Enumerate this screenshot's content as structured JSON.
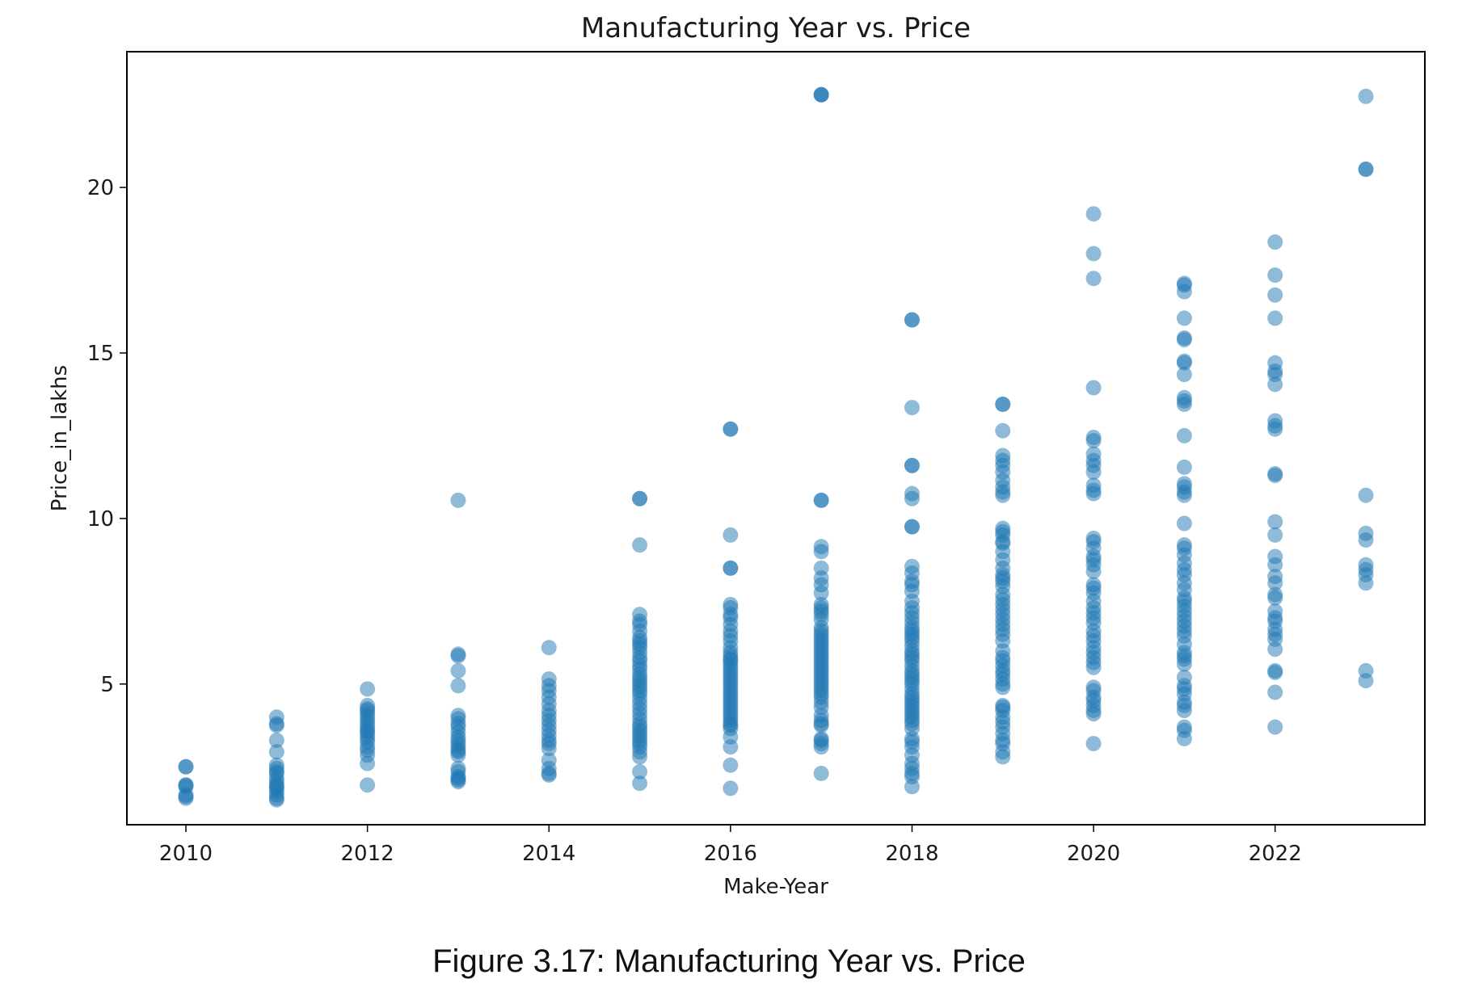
{
  "caption": "Figure 3.17: Manufacturing Year vs. Price",
  "chart_data": {
    "type": "scatter",
    "title": "Manufacturing Year vs. Price",
    "xlabel": "Make-Year",
    "ylabel": "Price_in_lakhs",
    "xlim": [
      2009.35,
      2023.65
    ],
    "ylim": [
      0.75,
      24.1
    ],
    "xticks": [
      2010,
      2012,
      2014,
      2016,
      2018,
      2020,
      2022
    ],
    "yticks": [
      5,
      10,
      15,
      20
    ],
    "grid": false,
    "legend": "none",
    "marker_color": "#1f77b4",
    "marker_alpha": 0.5,
    "points": [
      {
        "x": 2010,
        "y": [
          2.5,
          2.5,
          1.95,
          1.95,
          1.9,
          1.65,
          1.6,
          1.55
        ]
      },
      {
        "x": 2011,
        "y": [
          4.0,
          3.8,
          3.75,
          3.3,
          2.95,
          2.55,
          2.45,
          2.35,
          2.3,
          2.15,
          2.05,
          1.95,
          1.9,
          1.85,
          1.75,
          1.65,
          1.55,
          1.5
        ]
      },
      {
        "x": 2012,
        "y": [
          4.85,
          4.35,
          4.25,
          4.2,
          4.1,
          4.0,
          3.9,
          3.8,
          3.7,
          3.6,
          3.55,
          3.45,
          3.35,
          3.25,
          3.1,
          3.0,
          2.85,
          2.6,
          1.95
        ]
      },
      {
        "x": 2013,
        "y": [
          10.55,
          5.9,
          5.85,
          5.4,
          4.95,
          4.05,
          3.95,
          3.8,
          3.7,
          3.55,
          3.4,
          3.3,
          3.2,
          3.1,
          3.0,
          2.95,
          2.85,
          2.45,
          2.35,
          2.2,
          2.15,
          2.1,
          2.05
        ]
      },
      {
        "x": 2014,
        "y": [
          6.1,
          5.15,
          4.95,
          4.8,
          4.6,
          4.4,
          4.2,
          4.05,
          3.9,
          3.75,
          3.6,
          3.45,
          3.3,
          3.2,
          3.05,
          2.7,
          2.45,
          2.3,
          2.25
        ]
      },
      {
        "x": 2015,
        "y": [
          10.6,
          10.6,
          9.2,
          7.1,
          6.9,
          6.8,
          6.6,
          6.4,
          6.3,
          6.2,
          6.1,
          5.95,
          5.8,
          5.7,
          5.55,
          5.45,
          5.3,
          5.2,
          5.1,
          5.0,
          4.9,
          4.8,
          4.7,
          4.55,
          4.4,
          4.25,
          4.1,
          3.95,
          3.8,
          3.7,
          3.6,
          3.5,
          3.4,
          3.3,
          3.2,
          3.1,
          2.95,
          2.8,
          2.35,
          2.0
        ]
      },
      {
        "x": 2016,
        "y": [
          12.7,
          12.7,
          9.5,
          8.5,
          8.5,
          7.4,
          7.3,
          7.1,
          7.0,
          6.8,
          6.6,
          6.45,
          6.3,
          6.1,
          5.95,
          5.85,
          5.75,
          5.7,
          5.6,
          5.5,
          5.4,
          5.3,
          5.2,
          5.1,
          5.0,
          4.9,
          4.8,
          4.7,
          4.6,
          4.5,
          4.4,
          4.3,
          4.2,
          4.1,
          4.0,
          3.9,
          3.8,
          3.75,
          3.65,
          3.4,
          3.1,
          2.55,
          1.85
        ]
      },
      {
        "x": 2017,
        "y": [
          22.8,
          22.8,
          22.8,
          10.55,
          10.55,
          9.15,
          9.0,
          8.5,
          8.2,
          8.0,
          7.75,
          7.4,
          7.3,
          7.2,
          7.1,
          6.95,
          6.7,
          6.6,
          6.5,
          6.4,
          6.3,
          6.2,
          6.1,
          6.0,
          5.9,
          5.8,
          5.7,
          5.6,
          5.5,
          5.4,
          5.3,
          5.2,
          5.1,
          5.0,
          4.9,
          4.8,
          4.7,
          4.6,
          4.45,
          4.3,
          4.05,
          3.9,
          3.8,
          3.75,
          3.35,
          3.3,
          3.2,
          3.1,
          2.3
        ]
      },
      {
        "x": 2018,
        "y": [
          16.0,
          16.0,
          13.35,
          11.6,
          11.6,
          10.75,
          10.6,
          9.75,
          9.75,
          8.55,
          8.35,
          8.1,
          8.0,
          7.8,
          7.5,
          7.3,
          7.15,
          7.0,
          6.85,
          6.7,
          6.6,
          6.5,
          6.4,
          6.3,
          6.15,
          6.0,
          5.9,
          5.8,
          5.7,
          5.55,
          5.4,
          5.3,
          5.2,
          5.1,
          5.0,
          4.85,
          4.7,
          4.6,
          4.5,
          4.4,
          4.3,
          4.2,
          4.1,
          4.0,
          3.9,
          3.8,
          3.65,
          3.35,
          3.25,
          3.1,
          2.85,
          2.6,
          2.45,
          2.3,
          2.2,
          1.9
        ]
      },
      {
        "x": 2019,
        "y": [
          13.45,
          13.45,
          12.65,
          11.9,
          11.75,
          11.6,
          11.4,
          11.15,
          10.95,
          10.8,
          10.7,
          9.7,
          9.6,
          9.5,
          9.3,
          9.25,
          9.0,
          8.75,
          8.5,
          8.3,
          8.2,
          8.1,
          7.95,
          7.7,
          7.55,
          7.4,
          7.25,
          7.1,
          6.95,
          6.8,
          6.65,
          6.5,
          6.3,
          6.0,
          5.8,
          5.7,
          5.55,
          5.4,
          5.3,
          5.15,
          5.0,
          4.9,
          4.35,
          4.3,
          4.2,
          4.0,
          3.85,
          3.7,
          3.5,
          3.3,
          3.2,
          2.95,
          2.8
        ]
      },
      {
        "x": 2020,
        "y": [
          19.2,
          18.0,
          17.25,
          13.95,
          12.45,
          12.35,
          11.95,
          11.75,
          11.6,
          11.4,
          11.0,
          10.85,
          10.75,
          9.4,
          9.3,
          9.1,
          8.85,
          8.75,
          8.6,
          8.4,
          8.0,
          7.9,
          7.75,
          7.5,
          7.3,
          7.15,
          7.0,
          6.85,
          6.6,
          6.45,
          6.3,
          6.1,
          5.95,
          5.8,
          5.65,
          5.5,
          4.9,
          4.8,
          4.6,
          4.5,
          4.35,
          4.2,
          4.1,
          3.2
        ]
      },
      {
        "x": 2021,
        "y": [
          17.1,
          17.05,
          16.85,
          16.05,
          15.45,
          15.4,
          14.75,
          14.7,
          14.35,
          13.65,
          13.55,
          13.45,
          12.5,
          11.55,
          11.05,
          10.95,
          10.8,
          10.7,
          9.85,
          9.2,
          9.1,
          8.9,
          8.65,
          8.45,
          8.3,
          8.05,
          7.85,
          7.6,
          7.5,
          7.35,
          7.2,
          7.05,
          6.9,
          6.75,
          6.6,
          6.45,
          6.2,
          5.95,
          5.85,
          5.75,
          5.6,
          5.2,
          4.95,
          4.85,
          4.7,
          4.45,
          4.35,
          4.2,
          3.7,
          3.6,
          3.35
        ]
      },
      {
        "x": 2022,
        "y": [
          18.35,
          17.35,
          16.75,
          16.05,
          14.7,
          14.45,
          14.35,
          14.05,
          12.95,
          12.8,
          12.7,
          11.35,
          11.3,
          9.9,
          9.5,
          8.85,
          8.6,
          8.25,
          8.05,
          7.7,
          7.6,
          7.2,
          7.0,
          6.9,
          6.65,
          6.5,
          6.35,
          6.05,
          5.4,
          5.35,
          4.75,
          3.7
        ]
      },
      {
        "x": 2023,
        "y": [
          22.75,
          20.55,
          20.55,
          10.7,
          9.55,
          9.35,
          8.6,
          8.45,
          8.3,
          8.05,
          5.4,
          5.1
        ]
      }
    ]
  }
}
